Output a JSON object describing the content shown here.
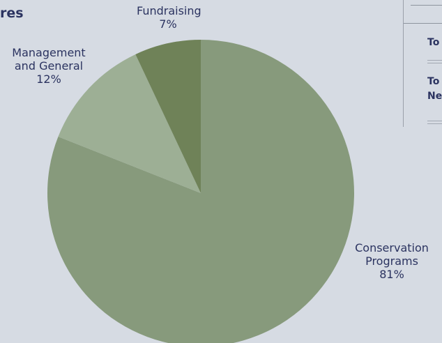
{
  "heading_fragment": "res",
  "side_panel": {
    "row1": "To",
    "row2a": "To",
    "row2b": "Ne"
  },
  "chart_data": {
    "type": "pie",
    "title": "",
    "slices": [
      {
        "label_lines": [
          "Conservation",
          "Programs"
        ],
        "percent_label": "81%",
        "value": 81,
        "color": "#879a7c"
      },
      {
        "label_lines": [
          "Management",
          "and General"
        ],
        "percent_label": "12%",
        "value": 12,
        "color": "#9daf95"
      },
      {
        "label_lines": [
          "Fundraising"
        ],
        "percent_label": "7%",
        "value": 7,
        "color": "#6f8258"
      }
    ]
  }
}
